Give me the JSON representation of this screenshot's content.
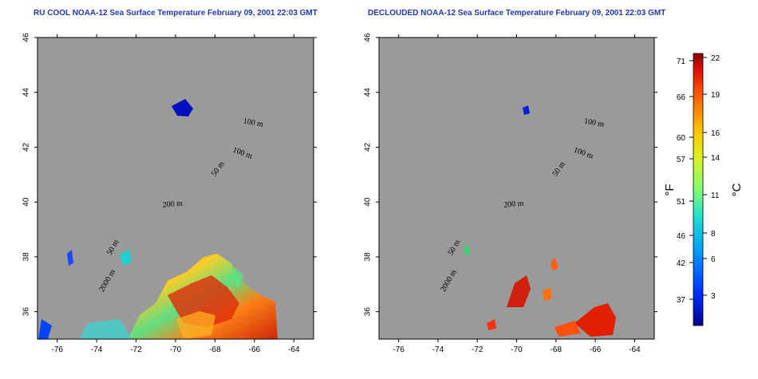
{
  "panels": [
    {
      "id": "left",
      "title": "RU COOL NOAA-12 Sea Surface Temperature February 09, 2001 22:03 GMT"
    },
    {
      "id": "right",
      "title": "DECLOUDED NOAA-12 Sea Surface Temperature February 09, 2001 22:03 GMT"
    }
  ],
  "map": {
    "lon_range": [
      -77,
      -63
    ],
    "lat_range": [
      35,
      46
    ],
    "x_ticks": [
      -76,
      -74,
      -72,
      -70,
      -68,
      -66,
      -64
    ],
    "y_ticks": [
      36,
      38,
      40,
      42,
      44,
      46
    ],
    "grid": "dotted",
    "land_color": "#c8c8c8",
    "ocean_color": "#ffffff",
    "contour_labels": [
      "100 m",
      "100 m",
      "50 m",
      "200 m",
      "50 m",
      "2000 m"
    ]
  },
  "colorbar": {
    "fahrenheit_ticks": [
      "71",
      "66",
      "60",
      "57",
      "51",
      "46",
      "42",
      "37"
    ],
    "celsius_ticks": [
      "22",
      "19",
      "16",
      "14",
      "11",
      "8",
      "6",
      "3"
    ],
    "fahrenheit_unit": "°F",
    "celsius_unit": "°C",
    "colors": [
      "#00008f",
      "#0030ff",
      "#00a0ff",
      "#20e0d0",
      "#80ff70",
      "#e0f020",
      "#ffc000",
      "#ff6000",
      "#e01000",
      "#8f0000"
    ]
  }
}
